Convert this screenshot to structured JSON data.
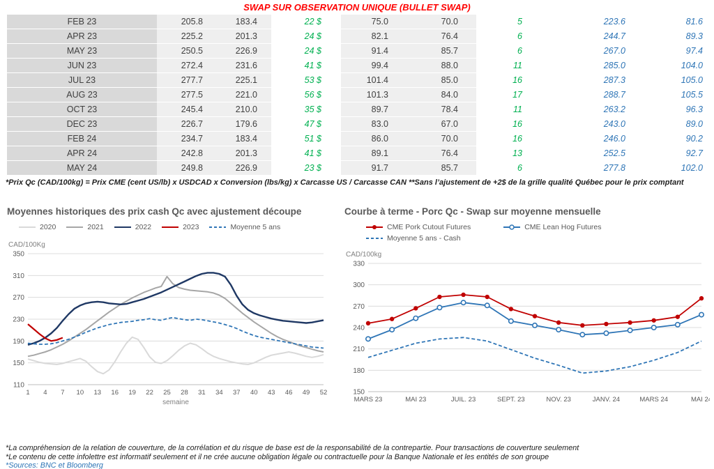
{
  "page": {
    "title": "SWAP SUR OBSERVATION UNIQUE (BULLET SWAP)"
  },
  "colors": {
    "title-red": "#ff0000",
    "green": "#00b050",
    "blue": "#2e75b6"
  },
  "table": {
    "rows": [
      [
        "FEB 23",
        "205.8",
        "183.4",
        "22 $",
        "75.0",
        "70.0",
        "5",
        "223.6",
        "81.6"
      ],
      [
        "APR 23",
        "225.2",
        "201.3",
        "24 $",
        "82.1",
        "76.4",
        "6",
        "244.7",
        "89.3"
      ],
      [
        "MAY 23",
        "250.5",
        "226.9",
        "24 $",
        "91.4",
        "85.7",
        "6",
        "267.0",
        "97.4"
      ],
      [
        "JUN 23",
        "272.4",
        "231.6",
        "41 $",
        "99.4",
        "88.0",
        "11",
        "285.0",
        "104.0"
      ],
      [
        "JUL 23",
        "277.7",
        "225.1",
        "53 $",
        "101.4",
        "85.0",
        "16",
        "287.3",
        "105.0"
      ],
      [
        "AUG 23",
        "277.5",
        "221.0",
        "56 $",
        "101.3",
        "84.0",
        "17",
        "288.7",
        "105.5"
      ],
      [
        "OCT 23",
        "245.4",
        "210.0",
        "35 $",
        "89.7",
        "78.4",
        "11",
        "263.2",
        "96.3"
      ],
      [
        "DEC 23",
        "226.7",
        "179.6",
        "47 $",
        "83.0",
        "67.0",
        "16",
        "243.0",
        "89.0"
      ],
      [
        "FEB 24",
        "234.7",
        "183.4",
        "51 $",
        "86.0",
        "70.0",
        "16",
        "246.0",
        "90.2"
      ],
      [
        "APR 24",
        "242.8",
        "201.3",
        "41 $",
        "89.1",
        "76.4",
        "13",
        "252.5",
        "92.7"
      ],
      [
        "MAY 24",
        "249.8",
        "226.9",
        "23 $",
        "91.7",
        "85.7",
        "6",
        "277.8",
        "102.0"
      ]
    ],
    "footnote": "*Prix Qc (CAD/100kg) = Prix CME (cent US/lb) x USDCAD x Conversion (lbs/kg) x Carcasse US / Carcasse CAN **Sans l’ajustement de +2$ de la grille qualité Québec pour le prix comptant"
  },
  "footnotes": {
    "lines": [
      "*La compréhension de la relation de couverture, de la corrélation et du risque de base est de la responsabilité de la contrepartie. Pour transactions de couverture seulement",
      "*Le contenu de cette infolettre est informatif seulement et il ne crée aucune obligation légale ou contractuelle pour la Banque Nationale et les entités de son groupe"
    ],
    "sources": "*Sources: BNC et Bloomberg"
  },
  "chart_data": [
    {
      "type": "line",
      "title": "Moyennes historiques des prix cash Qc avec ajustement découpe",
      "ylabel": "CAD/100Kg",
      "xlabel": "semaine",
      "ylim": [
        110,
        350
      ],
      "yticks": [
        110,
        150,
        190,
        230,
        270,
        310,
        350
      ],
      "xlim": [
        1,
        52
      ],
      "xticks": [
        1,
        4,
        7,
        10,
        13,
        16,
        19,
        22,
        25,
        28,
        31,
        34,
        37,
        40,
        43,
        46,
        49,
        52
      ],
      "grid": true,
      "legend_position": "top",
      "legend_rows": [
        [
          0,
          1,
          2,
          3,
          4
        ]
      ],
      "series": [
        {
          "name": "2020",
          "color": "#d9d9d9",
          "width": 2,
          "values": [
            157,
            154,
            151,
            149,
            148,
            147,
            149,
            152,
            155,
            158,
            153,
            143,
            134,
            130,
            137,
            152,
            170,
            186,
            197,
            193,
            178,
            161,
            151,
            149,
            154,
            163,
            173,
            181,
            186,
            183,
            176,
            168,
            162,
            158,
            155,
            152,
            150,
            148,
            147,
            150,
            155,
            160,
            164,
            166,
            168,
            170,
            168,
            165,
            162,
            160,
            162,
            165
          ]
        },
        {
          "name": "2021",
          "color": "#a6a6a6",
          "width": 2,
          "values": [
            162,
            164,
            167,
            170,
            174,
            179,
            184,
            190,
            197,
            204,
            211,
            219,
            227,
            235,
            243,
            250,
            257,
            263,
            269,
            274,
            279,
            283,
            287,
            290,
            308,
            295,
            288,
            285,
            283,
            282,
            281,
            280,
            278,
            274,
            268,
            259,
            250,
            241,
            233,
            225,
            218,
            211,
            204,
            198,
            193,
            189,
            185,
            181,
            178,
            175,
            172,
            170
          ]
        },
        {
          "name": "2022",
          "color": "#1f3864",
          "width": 2.4,
          "values": [
            183,
            186,
            190,
            196,
            204,
            214,
            227,
            239,
            249,
            255,
            259,
            261,
            262,
            261,
            259,
            258,
            257,
            258,
            261,
            264,
            267,
            271,
            275,
            279,
            284,
            289,
            294,
            299,
            304,
            309,
            313,
            315,
            315,
            313,
            308,
            293,
            273,
            257,
            247,
            241,
            237,
            234,
            231,
            229,
            227,
            226,
            225,
            224,
            223,
            224,
            226,
            228
          ]
        },
        {
          "name": "2023",
          "color": "#c00000",
          "width": 2.2,
          "values": [
            221,
            212,
            203,
            195,
            190,
            192,
            196
          ]
        },
        {
          "name": "Moyenne 5 ans",
          "color": "#2e75b6",
          "width": 1.8,
          "dash": true,
          "values": [
            186,
            185,
            184,
            184,
            185,
            187,
            190,
            193,
            197,
            201,
            206,
            210,
            214,
            217,
            220,
            222,
            224,
            225,
            226,
            228,
            229,
            231,
            229,
            228,
            231,
            233,
            231,
            229,
            228,
            230,
            229,
            227,
            225,
            223,
            220,
            217,
            213,
            208,
            204,
            200,
            197,
            195,
            193,
            191,
            189,
            187,
            185,
            183,
            181,
            179,
            178,
            177
          ]
        }
      ]
    },
    {
      "type": "line",
      "title": "Courbe à terme - Porc Qc - Swap sur moyenne mensuelle",
      "ylabel": "CAD/100kg",
      "xlabel": "",
      "ylim": [
        150,
        330
      ],
      "yticks": [
        150,
        180,
        210,
        240,
        270,
        300,
        330
      ],
      "xlim": [
        0,
        14
      ],
      "xticks": [
        {
          "pos": 0,
          "label": "MARS 23"
        },
        {
          "pos": 2,
          "label": "MAI 23"
        },
        {
          "pos": 4,
          "label": "JUIL. 23"
        },
        {
          "pos": 6,
          "label": "SEPT. 23"
        },
        {
          "pos": 8,
          "label": "NOV. 23"
        },
        {
          "pos": 10,
          "label": "JANV. 24"
        },
        {
          "pos": 12,
          "label": "MARS 24"
        },
        {
          "pos": 14,
          "label": "MAI 24"
        }
      ],
      "grid": true,
      "legend_position": "top",
      "legend_rows": [
        [
          0,
          1
        ],
        [
          2
        ]
      ],
      "series": [
        {
          "name": "CME Pork Cutout Futures",
          "color": "#c00000",
          "width": 1.8,
          "marker": "filled-circle",
          "values": [
            246,
            252,
            267,
            283,
            286,
            283,
            266,
            256,
            247,
            243,
            245,
            247,
            250,
            255,
            281
          ]
        },
        {
          "name": "CME Lean Hog Futures",
          "color": "#2e75b6",
          "width": 1.8,
          "marker": "open-circle",
          "values": [
            224,
            237,
            253,
            268,
            275,
            271,
            249,
            243,
            237,
            230,
            232,
            236,
            240,
            244,
            258
          ]
        },
        {
          "name": "Moyenne 5 ans - Cash",
          "color": "#2e75b6",
          "width": 1.8,
          "dash": true,
          "values": [
            198,
            208,
            218,
            224,
            226,
            221,
            209,
            197,
            187,
            176,
            179,
            185,
            194,
            205,
            221
          ]
        }
      ]
    }
  ]
}
